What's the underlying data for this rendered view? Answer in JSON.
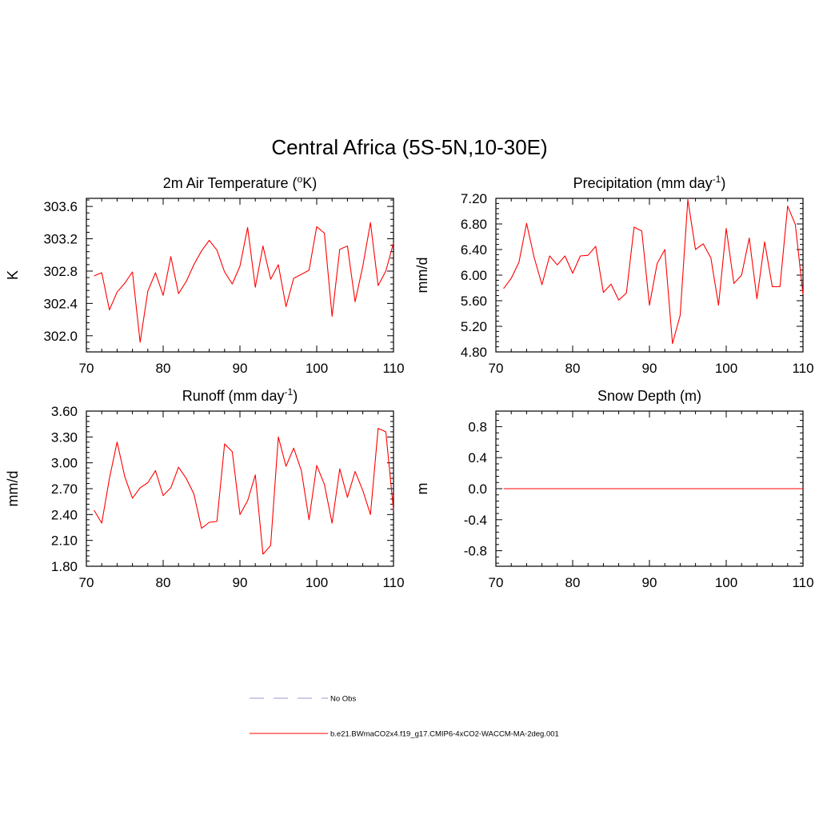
{
  "figure": {
    "title": "Central Africa (5S-5N,10-30E)"
  },
  "legend": {
    "entries": [
      {
        "label": "No Obs",
        "color": "#9a9ad6",
        "style": "dashed"
      },
      {
        "label": "b.e21.BWmaCO2x4.f19_g17.CMIP6-4xCO2-WACCM-MA-2deg.001",
        "color": "#ff0000",
        "style": "solid"
      }
    ]
  },
  "chart_data": [
    {
      "type": "line",
      "title": "2m Air Temperature (",
      "title_sup": "o",
      "title_suffix": "K)",
      "ylabel": "K",
      "xlim": [
        70,
        110
      ],
      "ylim": [
        301.8,
        303.7
      ],
      "xticks": [
        70,
        80,
        90,
        100,
        110
      ],
      "yticks": [
        302.0,
        302.4,
        302.8,
        303.2,
        303.6
      ],
      "ytick_labels": [
        "302.0",
        "302.4",
        "302.8",
        "303.2",
        "303.6"
      ],
      "x": [
        71,
        72,
        73,
        74,
        75,
        76,
        77,
        78,
        79,
        80,
        81,
        82,
        83,
        84,
        85,
        86,
        87,
        88,
        89,
        90,
        91,
        92,
        93,
        94,
        95,
        96,
        97,
        98,
        99,
        100,
        101,
        102,
        103,
        104,
        105,
        106,
        107,
        108,
        109,
        110
      ],
      "series": [
        {
          "color": "#ff0000",
          "values": [
            302.74,
            302.78,
            302.32,
            302.54,
            302.65,
            302.79,
            301.92,
            302.55,
            302.78,
            302.5,
            302.98,
            302.52,
            302.67,
            302.88,
            303.05,
            303.18,
            303.06,
            302.79,
            302.64,
            302.86,
            303.34,
            302.6,
            303.11,
            302.7,
            302.88,
            302.36,
            302.71,
            302.76,
            302.81,
            303.35,
            303.27,
            302.24,
            303.07,
            303.11,
            302.42,
            302.86,
            303.4,
            302.62,
            302.8,
            303.15
          ]
        }
      ]
    },
    {
      "type": "line",
      "title": "Precipitation (mm day",
      "title_sup": "-1",
      "title_suffix": ")",
      "ylabel": "mm/d",
      "xlim": [
        70,
        110
      ],
      "ylim": [
        4.8,
        7.2
      ],
      "xticks": [
        70,
        80,
        90,
        100,
        110
      ],
      "yticks": [
        4.8,
        5.2,
        5.6,
        6.0,
        6.4,
        6.8,
        7.2
      ],
      "ytick_labels": [
        "4.80",
        "5.20",
        "5.60",
        "6.00",
        "6.40",
        "6.80",
        "7.20"
      ],
      "x": [
        71,
        72,
        73,
        74,
        75,
        76,
        77,
        78,
        79,
        80,
        81,
        82,
        83,
        84,
        85,
        86,
        87,
        88,
        89,
        90,
        91,
        92,
        93,
        94,
        95,
        96,
        97,
        98,
        99,
        100,
        101,
        102,
        103,
        104,
        105,
        106,
        107,
        108,
        109,
        110
      ],
      "series": [
        {
          "color": "#ff0000",
          "values": [
            5.79,
            5.95,
            6.2,
            6.81,
            6.27,
            5.85,
            6.3,
            6.16,
            6.3,
            6.03,
            6.3,
            6.31,
            6.45,
            5.73,
            5.86,
            5.61,
            5.72,
            6.75,
            6.69,
            5.53,
            6.18,
            6.4,
            4.93,
            5.37,
            7.18,
            6.4,
            6.49,
            6.27,
            5.53,
            6.73,
            5.87,
            6.0,
            6.58,
            5.63,
            6.52,
            5.82,
            5.82,
            7.08,
            6.79,
            5.7
          ]
        }
      ]
    },
    {
      "type": "line",
      "title": "Runoff (mm day",
      "title_sup": "-1",
      "title_suffix": ")",
      "ylabel": "mm/d",
      "xlim": [
        70,
        110
      ],
      "ylim": [
        1.8,
        3.6
      ],
      "xticks": [
        70,
        80,
        90,
        100,
        110
      ],
      "yticks": [
        1.8,
        2.1,
        2.4,
        2.7,
        3.0,
        3.3,
        3.6
      ],
      "ytick_labels": [
        "1.80",
        "2.10",
        "2.40",
        "2.70",
        "3.00",
        "3.30",
        "3.60"
      ],
      "x": [
        71,
        72,
        73,
        74,
        75,
        76,
        77,
        78,
        79,
        80,
        81,
        82,
        83,
        84,
        85,
        86,
        87,
        88,
        89,
        90,
        91,
        92,
        93,
        94,
        95,
        96,
        97,
        98,
        99,
        100,
        101,
        102,
        103,
        104,
        105,
        106,
        107,
        108,
        109,
        110
      ],
      "series": [
        {
          "color": "#ff0000",
          "values": [
            2.45,
            2.3,
            2.82,
            3.24,
            2.84,
            2.59,
            2.71,
            2.77,
            2.91,
            2.62,
            2.71,
            2.95,
            2.82,
            2.64,
            2.24,
            2.31,
            2.32,
            3.22,
            3.13,
            2.4,
            2.56,
            2.86,
            1.94,
            2.04,
            3.3,
            2.96,
            3.17,
            2.91,
            2.34,
            2.97,
            2.75,
            2.3,
            2.93,
            2.6,
            2.9,
            2.68,
            2.4,
            3.4,
            3.36,
            2.45
          ]
        }
      ]
    },
    {
      "type": "line",
      "title": "Snow Depth (m)",
      "title_sup": "",
      "title_suffix": "",
      "ylabel": "m",
      "xlim": [
        70,
        110
      ],
      "ylim": [
        -1.0,
        1.0
      ],
      "xticks": [
        70,
        80,
        90,
        100,
        110
      ],
      "yticks": [
        -0.8,
        -0.4,
        0.0,
        0.4,
        0.8
      ],
      "ytick_labels": [
        "-0.8",
        "-0.4",
        "0.0",
        "0.4",
        "0.8"
      ],
      "x": [
        71,
        72,
        73,
        74,
        75,
        76,
        77,
        78,
        79,
        80,
        81,
        82,
        83,
        84,
        85,
        86,
        87,
        88,
        89,
        90,
        91,
        92,
        93,
        94,
        95,
        96,
        97,
        98,
        99,
        100,
        101,
        102,
        103,
        104,
        105,
        106,
        107,
        108,
        109,
        110
      ],
      "series": [
        {
          "color": "#ff0000",
          "values": [
            0,
            0,
            0,
            0,
            0,
            0,
            0,
            0,
            0,
            0,
            0,
            0,
            0,
            0,
            0,
            0,
            0,
            0,
            0,
            0,
            0,
            0,
            0,
            0,
            0,
            0,
            0,
            0,
            0,
            0,
            0,
            0,
            0,
            0,
            0,
            0,
            0,
            0,
            0,
            0
          ]
        }
      ]
    }
  ]
}
